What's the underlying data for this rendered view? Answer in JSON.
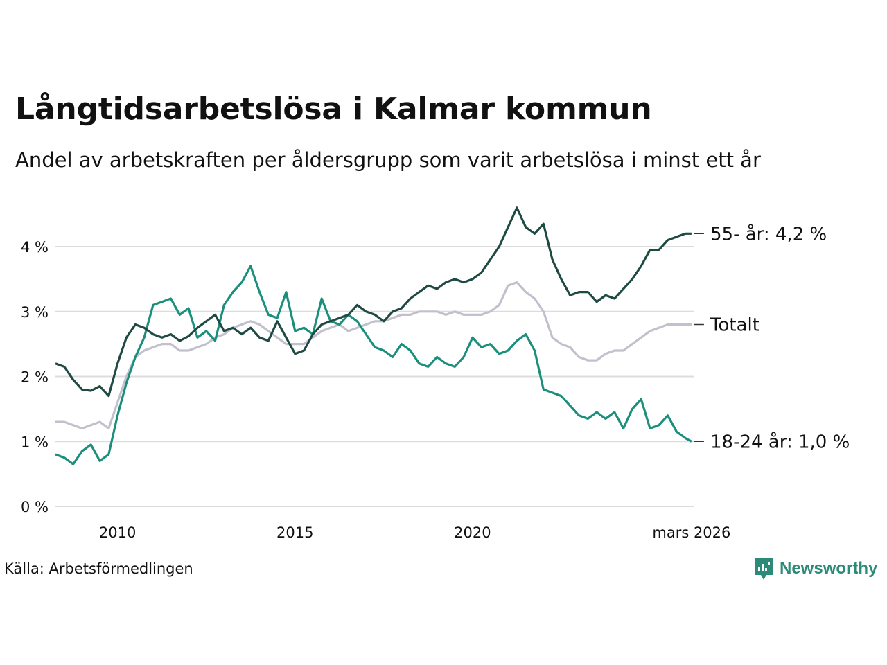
{
  "title": "Långtidsarbetslösa i Kalmar kommun",
  "subtitle": "Andel av arbetskraften per åldersgrupp som varit arbetslösa i minst ett år",
  "source": "Källa: Arbetsförmedlingen",
  "brand": "Newsworthy",
  "colors": {
    "older": "#1f4a43",
    "young": "#1b8f7c",
    "total": "#c2c0cc",
    "grid": "#dcdcdc",
    "brand": "#2b8a78"
  },
  "chart_data": {
    "type": "line",
    "title": "Långtidsarbetslösa i Kalmar kommun",
    "xlabel": "",
    "ylabel": "",
    "x_range": [
      2008.25,
      2026.25
    ],
    "ylim": [
      0,
      4.6
    ],
    "y_ticks": [
      0,
      1,
      2,
      3,
      4
    ],
    "y_tick_labels": [
      "0 %",
      "1 %",
      "2 %",
      "3 %",
      "4 %"
    ],
    "x_ticks": [
      2010,
      2015,
      2020,
      2026.17
    ],
    "x_tick_labels": [
      "2010",
      "2015",
      "2020",
      "mars 2026"
    ],
    "series": [
      {
        "name": "55- år",
        "color_key": "older",
        "end_label": "55- år: 4,2 %",
        "label_value": 4.2,
        "points": [
          [
            2008.25,
            2.2
          ],
          [
            2008.5,
            2.15
          ],
          [
            2008.75,
            1.95
          ],
          [
            2009.0,
            1.8
          ],
          [
            2009.25,
            1.78
          ],
          [
            2009.5,
            1.85
          ],
          [
            2009.75,
            1.7
          ],
          [
            2010.0,
            2.2
          ],
          [
            2010.25,
            2.6
          ],
          [
            2010.5,
            2.8
          ],
          [
            2010.75,
            2.75
          ],
          [
            2011.0,
            2.65
          ],
          [
            2011.25,
            2.6
          ],
          [
            2011.5,
            2.65
          ],
          [
            2011.75,
            2.55
          ],
          [
            2012.0,
            2.62
          ],
          [
            2012.25,
            2.75
          ],
          [
            2012.5,
            2.85
          ],
          [
            2012.75,
            2.95
          ],
          [
            2013.0,
            2.7
          ],
          [
            2013.25,
            2.75
          ],
          [
            2013.5,
            2.65
          ],
          [
            2013.75,
            2.75
          ],
          [
            2014.0,
            2.6
          ],
          [
            2014.25,
            2.55
          ],
          [
            2014.5,
            2.85
          ],
          [
            2014.75,
            2.6
          ],
          [
            2015.0,
            2.35
          ],
          [
            2015.25,
            2.4
          ],
          [
            2015.5,
            2.65
          ],
          [
            2015.75,
            2.8
          ],
          [
            2016.0,
            2.85
          ],
          [
            2016.25,
            2.9
          ],
          [
            2016.5,
            2.95
          ],
          [
            2016.75,
            3.1
          ],
          [
            2017.0,
            3.0
          ],
          [
            2017.25,
            2.95
          ],
          [
            2017.5,
            2.85
          ],
          [
            2017.75,
            3.0
          ],
          [
            2018.0,
            3.05
          ],
          [
            2018.25,
            3.2
          ],
          [
            2018.5,
            3.3
          ],
          [
            2018.75,
            3.4
          ],
          [
            2019.0,
            3.35
          ],
          [
            2019.25,
            3.45
          ],
          [
            2019.5,
            3.5
          ],
          [
            2019.75,
            3.45
          ],
          [
            2020.0,
            3.5
          ],
          [
            2020.25,
            3.6
          ],
          [
            2020.5,
            3.8
          ],
          [
            2020.75,
            4.0
          ],
          [
            2021.0,
            4.3
          ],
          [
            2021.25,
            4.6
          ],
          [
            2021.5,
            4.3
          ],
          [
            2021.75,
            4.2
          ],
          [
            2022.0,
            4.35
          ],
          [
            2022.25,
            3.8
          ],
          [
            2022.5,
            3.5
          ],
          [
            2022.75,
            3.25
          ],
          [
            2023.0,
            3.3
          ],
          [
            2023.25,
            3.3
          ],
          [
            2023.5,
            3.15
          ],
          [
            2023.75,
            3.25
          ],
          [
            2024.0,
            3.2
          ],
          [
            2024.25,
            3.35
          ],
          [
            2024.5,
            3.5
          ],
          [
            2024.75,
            3.7
          ],
          [
            2025.0,
            3.95
          ],
          [
            2025.25,
            3.95
          ],
          [
            2025.5,
            4.1
          ],
          [
            2025.75,
            4.15
          ],
          [
            2026.0,
            4.2
          ],
          [
            2026.17,
            4.2
          ]
        ]
      },
      {
        "name": "18-24 år",
        "color_key": "young",
        "end_label": "18-24 år: 1,0 %",
        "label_value": 1.0,
        "points": [
          [
            2008.25,
            0.8
          ],
          [
            2008.5,
            0.75
          ],
          [
            2008.75,
            0.65
          ],
          [
            2009.0,
            0.85
          ],
          [
            2009.25,
            0.95
          ],
          [
            2009.5,
            0.7
          ],
          [
            2009.75,
            0.8
          ],
          [
            2010.0,
            1.4
          ],
          [
            2010.25,
            1.9
          ],
          [
            2010.5,
            2.3
          ],
          [
            2010.75,
            2.6
          ],
          [
            2011.0,
            3.1
          ],
          [
            2011.25,
            3.15
          ],
          [
            2011.5,
            3.2
          ],
          [
            2011.75,
            2.95
          ],
          [
            2012.0,
            3.05
          ],
          [
            2012.25,
            2.6
          ],
          [
            2012.5,
            2.7
          ],
          [
            2012.75,
            2.55
          ],
          [
            2013.0,
            3.1
          ],
          [
            2013.25,
            3.3
          ],
          [
            2013.5,
            3.45
          ],
          [
            2013.75,
            3.7
          ],
          [
            2014.0,
            3.3
          ],
          [
            2014.25,
            2.95
          ],
          [
            2014.5,
            2.9
          ],
          [
            2014.75,
            3.3
          ],
          [
            2015.0,
            2.7
          ],
          [
            2015.25,
            2.75
          ],
          [
            2015.5,
            2.65
          ],
          [
            2015.75,
            3.2
          ],
          [
            2016.0,
            2.85
          ],
          [
            2016.25,
            2.8
          ],
          [
            2016.5,
            2.95
          ],
          [
            2016.75,
            2.85
          ],
          [
            2017.0,
            2.65
          ],
          [
            2017.25,
            2.45
          ],
          [
            2017.5,
            2.4
          ],
          [
            2017.75,
            2.3
          ],
          [
            2018.0,
            2.5
          ],
          [
            2018.25,
            2.4
          ],
          [
            2018.5,
            2.2
          ],
          [
            2018.75,
            2.15
          ],
          [
            2019.0,
            2.3
          ],
          [
            2019.25,
            2.2
          ],
          [
            2019.5,
            2.15
          ],
          [
            2019.75,
            2.3
          ],
          [
            2020.0,
            2.6
          ],
          [
            2020.25,
            2.45
          ],
          [
            2020.5,
            2.5
          ],
          [
            2020.75,
            2.35
          ],
          [
            2021.0,
            2.4
          ],
          [
            2021.25,
            2.55
          ],
          [
            2021.5,
            2.65
          ],
          [
            2021.75,
            2.4
          ],
          [
            2022.0,
            1.8
          ],
          [
            2022.25,
            1.75
          ],
          [
            2022.5,
            1.7
          ],
          [
            2022.75,
            1.55
          ],
          [
            2023.0,
            1.4
          ],
          [
            2023.25,
            1.35
          ],
          [
            2023.5,
            1.45
          ],
          [
            2023.75,
            1.35
          ],
          [
            2024.0,
            1.45
          ],
          [
            2024.25,
            1.2
          ],
          [
            2024.5,
            1.5
          ],
          [
            2024.75,
            1.65
          ],
          [
            2025.0,
            1.2
          ],
          [
            2025.25,
            1.25
          ],
          [
            2025.5,
            1.4
          ],
          [
            2025.75,
            1.15
          ],
          [
            2026.0,
            1.05
          ],
          [
            2026.17,
            1.0
          ]
        ]
      },
      {
        "name": "Totalt",
        "color_key": "total",
        "end_label": "Totalt",
        "label_value": 2.8,
        "points": [
          [
            2008.25,
            1.3
          ],
          [
            2008.5,
            1.3
          ],
          [
            2008.75,
            1.25
          ],
          [
            2009.0,
            1.2
          ],
          [
            2009.25,
            1.25
          ],
          [
            2009.5,
            1.3
          ],
          [
            2009.75,
            1.2
          ],
          [
            2010.0,
            1.6
          ],
          [
            2010.25,
            2.0
          ],
          [
            2010.5,
            2.3
          ],
          [
            2010.75,
            2.4
          ],
          [
            2011.0,
            2.45
          ],
          [
            2011.25,
            2.5
          ],
          [
            2011.5,
            2.5
          ],
          [
            2011.75,
            2.4
          ],
          [
            2012.0,
            2.4
          ],
          [
            2012.25,
            2.45
          ],
          [
            2012.5,
            2.5
          ],
          [
            2012.75,
            2.6
          ],
          [
            2013.0,
            2.65
          ],
          [
            2013.25,
            2.75
          ],
          [
            2013.5,
            2.8
          ],
          [
            2013.75,
            2.85
          ],
          [
            2014.0,
            2.8
          ],
          [
            2014.25,
            2.7
          ],
          [
            2014.5,
            2.6
          ],
          [
            2014.75,
            2.5
          ],
          [
            2015.0,
            2.5
          ],
          [
            2015.25,
            2.5
          ],
          [
            2015.5,
            2.6
          ],
          [
            2015.75,
            2.7
          ],
          [
            2016.0,
            2.75
          ],
          [
            2016.25,
            2.8
          ],
          [
            2016.5,
            2.7
          ],
          [
            2016.75,
            2.75
          ],
          [
            2017.0,
            2.8
          ],
          [
            2017.25,
            2.85
          ],
          [
            2017.5,
            2.85
          ],
          [
            2017.75,
            2.9
          ],
          [
            2018.0,
            2.95
          ],
          [
            2018.25,
            2.95
          ],
          [
            2018.5,
            3.0
          ],
          [
            2018.75,
            3.0
          ],
          [
            2019.0,
            3.0
          ],
          [
            2019.25,
            2.95
          ],
          [
            2019.5,
            3.0
          ],
          [
            2019.75,
            2.95
          ],
          [
            2020.0,
            2.95
          ],
          [
            2020.25,
            2.95
          ],
          [
            2020.5,
            3.0
          ],
          [
            2020.75,
            3.1
          ],
          [
            2021.0,
            3.4
          ],
          [
            2021.25,
            3.45
          ],
          [
            2021.5,
            3.3
          ],
          [
            2021.75,
            3.2
          ],
          [
            2022.0,
            3.0
          ],
          [
            2022.25,
            2.6
          ],
          [
            2022.5,
            2.5
          ],
          [
            2022.75,
            2.45
          ],
          [
            2023.0,
            2.3
          ],
          [
            2023.25,
            2.25
          ],
          [
            2023.5,
            2.25
          ],
          [
            2023.75,
            2.35
          ],
          [
            2024.0,
            2.4
          ],
          [
            2024.25,
            2.4
          ],
          [
            2024.5,
            2.5
          ],
          [
            2024.75,
            2.6
          ],
          [
            2025.0,
            2.7
          ],
          [
            2025.25,
            2.75
          ],
          [
            2025.5,
            2.8
          ],
          [
            2025.75,
            2.8
          ],
          [
            2026.0,
            2.8
          ],
          [
            2026.17,
            2.8
          ]
        ]
      }
    ]
  }
}
